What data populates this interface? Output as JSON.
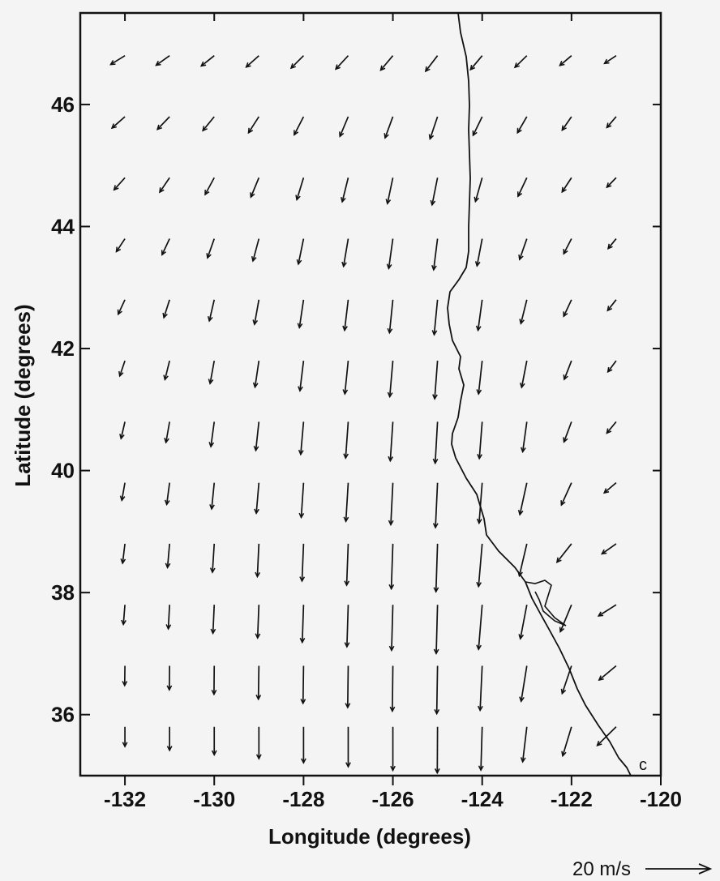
{
  "chart_data": {
    "type": "vector-field",
    "xlabel": "Longitude (degrees)",
    "ylabel": "Latitude (degrees)",
    "xlim": [
      -133,
      -120
    ],
    "ylim": [
      35,
      47.5
    ],
    "x_ticks": [
      -132,
      -130,
      -128,
      -126,
      -124,
      -122,
      -120
    ],
    "y_ticks": [
      36,
      38,
      40,
      42,
      44,
      46
    ],
    "x_tick_labels": [
      "-132",
      "-130",
      "-128",
      "-126",
      "-124",
      "-122",
      "-120"
    ],
    "y_tick_labels": [
      "36",
      "38",
      "40",
      "42",
      "44",
      "46"
    ],
    "panel_label": "c",
    "scale": {
      "label": "20 m/s",
      "speed_ms": 20
    },
    "grid": {
      "lon": [
        -132,
        -131,
        -130,
        -129,
        -128,
        -127,
        -126,
        -125,
        -124,
        -123,
        -122,
        -121
      ],
      "lat": [
        46.8,
        45.8,
        44.8,
        43.8,
        42.8,
        41.8,
        40.8,
        39.8,
        38.8,
        37.8,
        36.8,
        35.8
      ]
    },
    "wind_vectors": [
      [
        [
          -5.5,
          -3.4
        ],
        [
          -5.2,
          -3.7
        ],
        [
          -5,
          -4
        ],
        [
          -4.9,
          -4.4
        ],
        [
          -4.8,
          -4.8
        ],
        [
          -4.8,
          -5.2
        ],
        [
          -4.7,
          -5.6
        ],
        [
          -4.6,
          -6
        ],
        [
          -4.5,
          -5.4
        ],
        [
          -4.6,
          -4.5
        ],
        [
          -4.5,
          -3.8
        ],
        [
          -4.5,
          -3
        ]
      ],
      [
        [
          -5,
          -4.4
        ],
        [
          -4.7,
          -4.9
        ],
        [
          -4.4,
          -5.4
        ],
        [
          -4,
          -6.2
        ],
        [
          -3.6,
          -7
        ],
        [
          -3.2,
          -7.6
        ],
        [
          -3,
          -8.2
        ],
        [
          -2.9,
          -8.6
        ],
        [
          -3.5,
          -7.2
        ],
        [
          -3.6,
          -6.2
        ],
        [
          -3.6,
          -5.2
        ],
        [
          -3.6,
          -4.2
        ]
      ],
      [
        [
          -4.2,
          -4.7
        ],
        [
          -3.8,
          -5.6
        ],
        [
          -3.5,
          -6.5
        ],
        [
          -3.1,
          -7.5
        ],
        [
          -2.6,
          -8.5
        ],
        [
          -2.3,
          -9.3
        ],
        [
          -2.1,
          -10
        ],
        [
          -2.1,
          -10.5
        ],
        [
          -2.6,
          -9.2
        ],
        [
          -3.4,
          -7.2
        ],
        [
          -3.6,
          -5.5
        ],
        [
          -3.6,
          -3.7
        ]
      ],
      [
        [
          -3.3,
          -5
        ],
        [
          -2.9,
          -6.2
        ],
        [
          -2.6,
          -7.4
        ],
        [
          -2.3,
          -8.6
        ],
        [
          -2,
          -9.8
        ],
        [
          -1.8,
          -10.7
        ],
        [
          -1.6,
          -11.5
        ],
        [
          -1.5,
          -12
        ],
        [
          -2,
          -10.5
        ],
        [
          -2.8,
          -8
        ],
        [
          -3,
          -5.8
        ],
        [
          -3.1,
          -3.8
        ]
      ],
      [
        [
          -2.6,
          -5.6
        ],
        [
          -2.2,
          -6.9
        ],
        [
          -1.9,
          -8.2
        ],
        [
          -1.7,
          -9.5
        ],
        [
          -1.6,
          -10.8
        ],
        [
          -1.4,
          -11.8
        ],
        [
          -1.3,
          -12.8
        ],
        [
          -1.3,
          -13.5
        ],
        [
          -1.6,
          -11.8
        ],
        [
          -2.3,
          -9.2
        ],
        [
          -3,
          -6.4
        ],
        [
          -3.3,
          -4.2
        ]
      ],
      [
        [
          -2,
          -5.9
        ],
        [
          -1.8,
          -7.3
        ],
        [
          -1.6,
          -8.8
        ],
        [
          -1.5,
          -10.2
        ],
        [
          -1.4,
          -11.6
        ],
        [
          -1.3,
          -12.8
        ],
        [
          -1.2,
          -13.9
        ],
        [
          -1.1,
          -14.7
        ],
        [
          -1.4,
          -12.8
        ],
        [
          -2,
          -10.3
        ],
        [
          -2.8,
          -7.2
        ],
        [
          -3.2,
          -4.3
        ]
      ],
      [
        [
          -1.5,
          -6.5
        ],
        [
          -1.4,
          -8
        ],
        [
          -1.3,
          -9.6
        ],
        [
          -1.2,
          -11.1
        ],
        [
          -1.1,
          -12.6
        ],
        [
          -1,
          -14
        ],
        [
          -1,
          -15.1
        ],
        [
          -0.9,
          -16
        ],
        [
          -1.1,
          -14.2
        ],
        [
          -1.6,
          -11.6
        ],
        [
          -2.9,
          -7.8
        ],
        [
          -3.6,
          -4.4
        ]
      ],
      [
        [
          -1.2,
          -6.8
        ],
        [
          -1.1,
          -8.4
        ],
        [
          -1,
          -10.1
        ],
        [
          -1,
          -11.8
        ],
        [
          -0.9,
          -13.4
        ],
        [
          -0.9,
          -14.9
        ],
        [
          -0.8,
          -16.2
        ],
        [
          -0.8,
          -17.3
        ],
        [
          -1.2,
          -15.6
        ],
        [
          -2.7,
          -12.3
        ],
        [
          -3.9,
          -8.6
        ],
        [
          -4.6,
          -3.9
        ]
      ],
      [
        [
          -0.9,
          -7.5
        ],
        [
          -0.8,
          -9.2
        ],
        [
          -0.7,
          -11
        ],
        [
          -0.6,
          -12.7
        ],
        [
          -0.6,
          -14.4
        ],
        [
          -0.6,
          -16
        ],
        [
          -0.6,
          -17.4
        ],
        [
          -0.6,
          -18.5
        ],
        [
          -1.4,
          -16.5
        ],
        [
          -2.9,
          -12.4
        ],
        [
          -5.6,
          -7.1
        ],
        [
          -5.5,
          -3.9
        ]
      ],
      [
        [
          -0.6,
          -7.6
        ],
        [
          -0.5,
          -9.3
        ],
        [
          -0.5,
          -11
        ],
        [
          -0.5,
          -12.8
        ],
        [
          -0.5,
          -14.5
        ],
        [
          -0.5,
          -16.2
        ],
        [
          -0.5,
          -17.6
        ],
        [
          -0.5,
          -18.8
        ],
        [
          -1.4,
          -17.2
        ],
        [
          -2.5,
          -13.1
        ],
        [
          -4.3,
          -10.4
        ],
        [
          -6.8,
          -4.3
        ]
      ],
      [
        [
          -0.1,
          -7.6
        ],
        [
          -0.1,
          -9.3
        ],
        [
          -0.1,
          -11
        ],
        [
          -0.2,
          -12.9
        ],
        [
          -0.2,
          -14.5
        ],
        [
          -0.2,
          -16.1
        ],
        [
          -0.2,
          -17.5
        ],
        [
          -0.3,
          -18.5
        ],
        [
          -0.8,
          -17.2
        ],
        [
          -2.2,
          -13.7
        ],
        [
          -3.6,
          -10.7
        ],
        [
          -6.6,
          -5.5
        ]
      ],
      [
        [
          0,
          -7.6
        ],
        [
          0,
          -9.1
        ],
        [
          0,
          -10.8
        ],
        [
          0,
          -12.3
        ],
        [
          0,
          -13.9
        ],
        [
          0,
          -15.4
        ],
        [
          0,
          -16.8
        ],
        [
          -0.1,
          -17.8
        ],
        [
          -0.5,
          -16.7
        ],
        [
          -1.6,
          -13.5
        ],
        [
          -3.4,
          -11.2
        ],
        [
          -7.3,
          -7.2
        ]
      ]
    ]
  }
}
